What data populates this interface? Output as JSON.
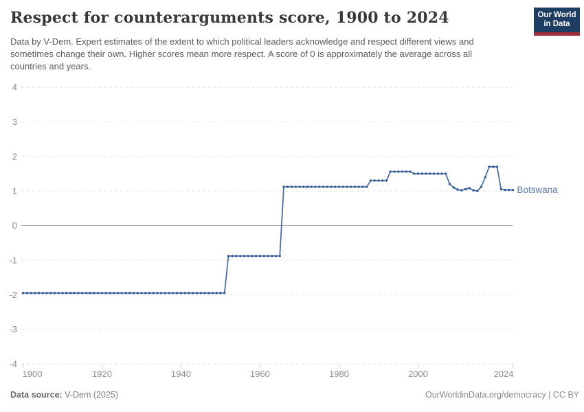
{
  "header": {
    "title": "Respect for counterarguments score, 1900 to 2024",
    "subtitle": "Data by V-Dem. Expert estimates of the extent to which political leaders acknowledge and respect different views and sometimes change their own. Higher scores mean more respect. A score of 0 is approximately the average across all countries and years.",
    "logo": {
      "line1": "Our World",
      "line2": "in Data"
    }
  },
  "chart_data": {
    "type": "line",
    "title": "Respect for counterarguments score, 1900 to 2024",
    "entity_label": "Botswana",
    "xlabel": "",
    "ylabel": "",
    "ylim": [
      -4,
      4
    ],
    "yticks": [
      4,
      3,
      2,
      1,
      0,
      -1,
      -2,
      -3,
      -4
    ],
    "xticks": [
      1900,
      1920,
      1940,
      1960,
      1980,
      2000,
      2024
    ],
    "grid": "horizontal-dashed",
    "legend_position": "end-of-line",
    "line_color": "#4268a5",
    "marker_color": "#3a5c99",
    "entity_label_color": "#5b7cb0",
    "zero_line_color": "#a6a6a6",
    "gridline_color": "#e2e2e2",
    "axis_text_color": "#8c8c8c",
    "x": [
      1900,
      1901,
      1902,
      1903,
      1904,
      1905,
      1906,
      1907,
      1908,
      1909,
      1910,
      1911,
      1912,
      1913,
      1914,
      1915,
      1916,
      1917,
      1918,
      1919,
      1920,
      1921,
      1922,
      1923,
      1924,
      1925,
      1926,
      1927,
      1928,
      1929,
      1930,
      1931,
      1932,
      1933,
      1934,
      1935,
      1936,
      1937,
      1938,
      1939,
      1940,
      1941,
      1942,
      1943,
      1944,
      1945,
      1946,
      1947,
      1948,
      1949,
      1950,
      1951,
      1952,
      1953,
      1954,
      1955,
      1956,
      1957,
      1958,
      1959,
      1960,
      1961,
      1962,
      1963,
      1964,
      1965,
      1966,
      1967,
      1968,
      1969,
      1970,
      1971,
      1972,
      1973,
      1974,
      1975,
      1976,
      1977,
      1978,
      1979,
      1980,
      1981,
      1982,
      1983,
      1984,
      1985,
      1986,
      1987,
      1988,
      1989,
      1990,
      1991,
      1992,
      1993,
      1994,
      1995,
      1996,
      1997,
      1998,
      1999,
      2000,
      2001,
      2002,
      2003,
      2004,
      2005,
      2006,
      2007,
      2008,
      2009,
      2010,
      2011,
      2012,
      2013,
      2014,
      2015,
      2016,
      2017,
      2018,
      2019,
      2020,
      2021,
      2022,
      2023,
      2024
    ],
    "series": [
      {
        "name": "Botswana",
        "values": [
          -1.95,
          -1.95,
          -1.95,
          -1.95,
          -1.95,
          -1.95,
          -1.95,
          -1.95,
          -1.95,
          -1.95,
          -1.95,
          -1.95,
          -1.95,
          -1.95,
          -1.95,
          -1.95,
          -1.95,
          -1.95,
          -1.95,
          -1.95,
          -1.95,
          -1.95,
          -1.95,
          -1.95,
          -1.95,
          -1.95,
          -1.95,
          -1.95,
          -1.95,
          -1.95,
          -1.95,
          -1.95,
          -1.95,
          -1.95,
          -1.95,
          -1.95,
          -1.95,
          -1.95,
          -1.95,
          -1.95,
          -1.95,
          -1.95,
          -1.95,
          -1.95,
          -1.95,
          -1.95,
          -1.95,
          -1.95,
          -1.95,
          -1.95,
          -1.95,
          -1.95,
          -0.88,
          -0.88,
          -0.88,
          -0.88,
          -0.88,
          -0.88,
          -0.88,
          -0.88,
          -0.88,
          -0.88,
          -0.88,
          -0.88,
          -0.88,
          -0.88,
          1.12,
          1.12,
          1.12,
          1.12,
          1.12,
          1.12,
          1.12,
          1.12,
          1.12,
          1.12,
          1.12,
          1.12,
          1.12,
          1.12,
          1.12,
          1.12,
          1.12,
          1.12,
          1.12,
          1.12,
          1.12,
          1.12,
          1.3,
          1.3,
          1.3,
          1.3,
          1.3,
          1.56,
          1.56,
          1.56,
          1.56,
          1.56,
          1.56,
          1.5,
          1.5,
          1.5,
          1.5,
          1.5,
          1.5,
          1.5,
          1.5,
          1.5,
          1.2,
          1.1,
          1.04,
          1.02,
          1.05,
          1.08,
          1.02,
          1.0,
          1.12,
          1.4,
          1.7,
          1.7,
          1.7,
          1.05,
          1.03,
          1.03,
          1.03
        ]
      }
    ]
  },
  "footer": {
    "source_label": "Data source:",
    "source_value": "V-Dem (2025)",
    "link": "OurWorldinData.org/democracy",
    "separator": "|",
    "license": "CC BY"
  }
}
